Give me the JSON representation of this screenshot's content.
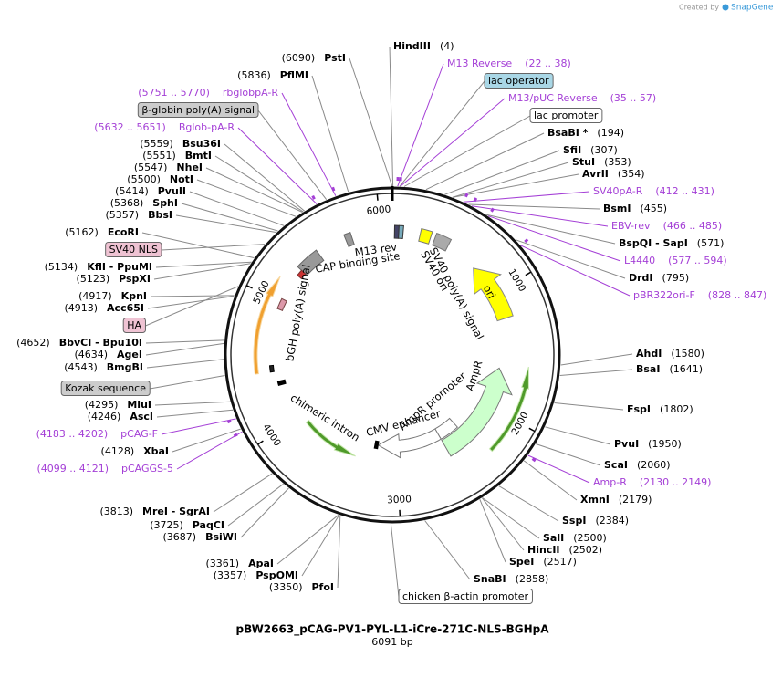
{
  "credit": {
    "prefix": "Created by",
    "brand": "SnapGene"
  },
  "title": "pBW2663_pCAG-PV1-PYL-L1-iCre-271C-NLS-BGHpA",
  "length": "6091 bp",
  "ticks": [
    "1000",
    "2000",
    "3000",
    "4000",
    "5000",
    "6000"
  ],
  "features": [
    "M13 rev",
    "CAP binding site",
    "SV40 poly(A) signal",
    "SV40 ori",
    "ori",
    "AmpR",
    "AmpR promoter",
    "CMV enhancer",
    "chimeric intron",
    "bGH poly(A) signal"
  ],
  "labels": [
    {
      "name": "HindIII",
      "position": "(4)"
    },
    {
      "name": "M13 Reverse",
      "range": "(22 .. 38)"
    },
    {
      "name": "lac operator"
    },
    {
      "name": "M13/pUC Reverse",
      "range": "(35 .. 57)"
    },
    {
      "name": "lac promoter"
    },
    {
      "name": "BsaBI *",
      "position": "(194)"
    },
    {
      "name": "SfiI",
      "position": "(307)"
    },
    {
      "name": "StuI",
      "position": "(353)"
    },
    {
      "name": "AvrII",
      "position": "(354)"
    },
    {
      "name": "SV40pA-R",
      "range": "(412 .. 431)"
    },
    {
      "name": "BsmI",
      "position": "(455)"
    },
    {
      "name": "EBV-rev",
      "range": "(466 .. 485)"
    },
    {
      "name": "BspQI  -  SapI",
      "position": "(571)"
    },
    {
      "name": "L4440",
      "range": "(577 .. 594)"
    },
    {
      "name": "DrdI",
      "position": "(795)"
    },
    {
      "name": "pBR322ori-F",
      "range": "(828 .. 847)"
    },
    {
      "name": "AhdI",
      "position": "(1580)"
    },
    {
      "name": "BsaI",
      "position": "(1641)"
    },
    {
      "name": "FspI",
      "position": "(1802)"
    },
    {
      "name": "PvuI",
      "position": "(1950)"
    },
    {
      "name": "ScaI",
      "position": "(2060)"
    },
    {
      "name": "Amp-R",
      "range": "(2130 .. 2149)"
    },
    {
      "name": "XmnI",
      "position": "(2179)"
    },
    {
      "name": "SspI",
      "position": "(2384)"
    },
    {
      "name": "SalI",
      "position": "(2500)"
    },
    {
      "name": "HincII",
      "position": "(2502)"
    },
    {
      "name": "SpeI",
      "position": "(2517)"
    },
    {
      "name": "SnaBI",
      "position": "(2858)"
    },
    {
      "name": "chicken β-actin promoter"
    },
    {
      "name": "PstI",
      "position": "(6090)"
    },
    {
      "name": "PflMI",
      "position": "(5836)"
    },
    {
      "name": "rbglobpA-R",
      "range": "(5751 .. 5770)"
    },
    {
      "name": "β-globin poly(A) signal"
    },
    {
      "name": "Bglob-pA-R",
      "range": "(5632 .. 5651)"
    },
    {
      "name": "Bsu36I",
      "position": "(5559)"
    },
    {
      "name": "BmtI",
      "position": "(5551)"
    },
    {
      "name": "NheI",
      "position": "(5547)"
    },
    {
      "name": "NotI",
      "position": "(5500)"
    },
    {
      "name": "PvuII",
      "position": "(5414)"
    },
    {
      "name": "SphI",
      "position": "(5368)"
    },
    {
      "name": "BbsI",
      "position": "(5357)"
    },
    {
      "name": "EcoRI",
      "position": "(5162)"
    },
    {
      "name": "SV40 NLS"
    },
    {
      "name": "KflI  -  PpuMI",
      "position": "(5134)"
    },
    {
      "name": "PspXI",
      "position": "(5123)"
    },
    {
      "name": "KpnI",
      "position": "(4917)"
    },
    {
      "name": "Acc65I",
      "position": "(4913)"
    },
    {
      "name": "HA"
    },
    {
      "name": "BbvCI  -  Bpu10I",
      "position": "(4652)"
    },
    {
      "name": "AgeI",
      "position": "(4634)"
    },
    {
      "name": "BmgBI",
      "position": "(4543)"
    },
    {
      "name": "Kozak sequence"
    },
    {
      "name": "MluI",
      "position": "(4295)"
    },
    {
      "name": "AscI",
      "position": "(4246)"
    },
    {
      "name": "pCAG-F",
      "range": "(4183 .. 4202)"
    },
    {
      "name": "XbaI",
      "position": "(4128)"
    },
    {
      "name": "pCAGGS-5",
      "range": "(4099 .. 4121)"
    },
    {
      "name": "MreI  -  SgrAI",
      "position": "(3813)"
    },
    {
      "name": "PaqCI",
      "position": "(3725)"
    },
    {
      "name": "BsiWI",
      "position": "(3687)"
    },
    {
      "name": "ApaI",
      "position": "(3361)"
    },
    {
      "name": "PspOMI",
      "position": "(3357)"
    },
    {
      "name": "PfoI",
      "position": "(3350)"
    }
  ]
}
